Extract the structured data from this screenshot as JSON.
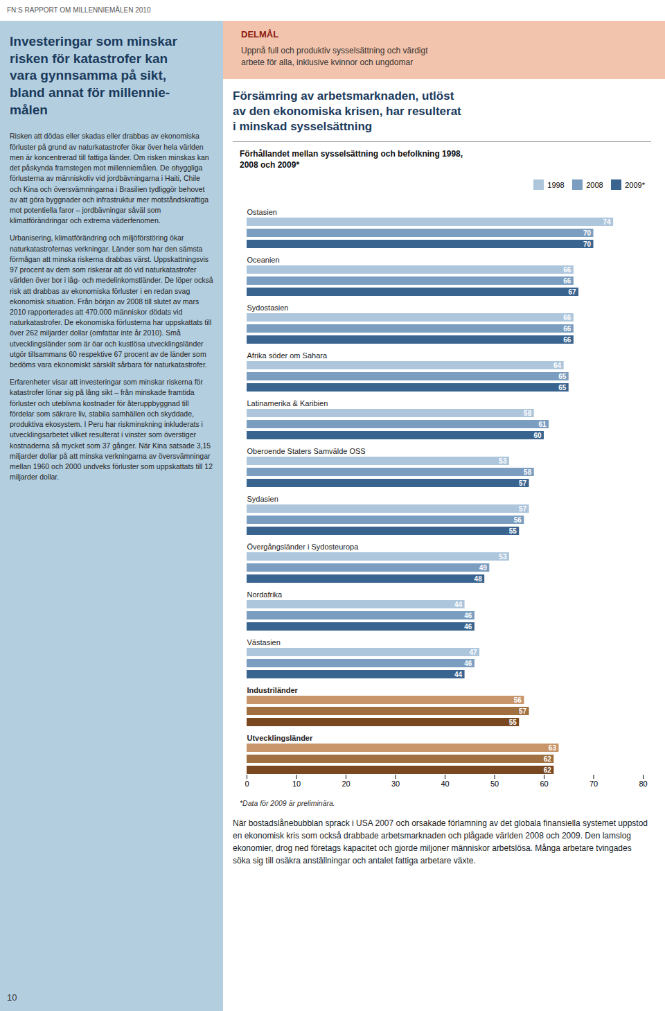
{
  "chart_data": {
    "type": "bar",
    "orientation": "horizontal",
    "title": "Förhållandet mellan sysselsättning och befolkning 1998,\n2008 och 2009*",
    "categories": [
      "Ostasien",
      "Oceanien",
      "Sydostasien",
      "Afrika söder om Sahara",
      "Latinamerika & Karibien",
      "Oberoende Staters Samvälde OSS",
      "Sydasien",
      "Övergångsländer i Sydosteuropa",
      "Nordafrika",
      "Västasien",
      "Industriländer",
      "Utvecklingsländer"
    ],
    "series": [
      {
        "name": "1998",
        "color": "#adc6dc",
        "colors": [
          "#adc6dc",
          "#adc6dc",
          "#adc6dc",
          "#adc6dc",
          "#adc6dc",
          "#adc6dc",
          "#adc6dc",
          "#adc6dc",
          "#adc6dc",
          "#adc6dc",
          "#c8956a",
          "#c8956a"
        ],
        "values": [
          74,
          66,
          66,
          64,
          58,
          53,
          57,
          53,
          44,
          47,
          56,
          63
        ]
      },
      {
        "name": "2008",
        "color": "#7b9dbf",
        "colors": [
          "#7b9dbf",
          "#7b9dbf",
          "#7b9dbf",
          "#7b9dbf",
          "#7b9dbf",
          "#7b9dbf",
          "#7b9dbf",
          "#7b9dbf",
          "#7b9dbf",
          "#7b9dbf",
          "#a07040",
          "#a07040"
        ],
        "values": [
          70,
          66,
          66,
          65,
          61,
          58,
          56,
          49,
          46,
          46,
          57,
          62
        ]
      },
      {
        "name": "2009*",
        "color": "#3a6490",
        "colors": [
          "#3a6490",
          "#3a6490",
          "#3a6490",
          "#3a6490",
          "#3a6490",
          "#3a6490",
          "#3a6490",
          "#3a6490",
          "#3a6490",
          "#3a6490",
          "#7a4820",
          "#7a4820"
        ],
        "values": [
          70,
          67,
          66,
          65,
          60,
          57,
          55,
          48,
          46,
          44,
          55,
          62
        ]
      }
    ],
    "xlim": [
      0,
      80
    ],
    "xticks": [
      0,
      10,
      20,
      30,
      40,
      50,
      60,
      70,
      80
    ],
    "grid": false,
    "legend": "top-right",
    "data_labels": true,
    "annotations": [
      "FN:S RAPPORT OM MILLENNIEMÅLEN 2010",
      "DELMÅL",
      "Uppnå full och produktiv sysselsättning och värdigt\narbete för alla, inklusive kvinnor och ungdomar",
      "Försämring av arbetsmarknaden, utlöst\nav den ekonomiska krisen, har resulterat\ni minskad sysselsättning",
      "*Data för 2009 är preliminära.",
      "När bostadslånebubblan sprack i USA 2007 och orsakade förlamning av det globala finansiella systemet uppstod en ekonomisk kris som också drabbade arbetsmarknaden och plågade världen 2008 och 2009. Den lamslog ekonomier, drog ned företags kapacitet och gjorde miljoner människor arbetslösa. Många arbetare tvingades söka sig till osäkra anställningar och antalet fattiga arbetare växte.",
      "Investeringar som minskar\nrisken för katastrofer kan\nvara gynnsamma på sikt,\nbland annat för millennie-\nmålen",
      "Risken att dödas eller skadas eller drabbas av ekonomiska förluster på grund av naturkatastrofer ökar över hela världen men är koncentrerad till fattiga länder. Om risken minskas kan det påskynda framstegen mot millenniemålen. De ohyggliga förlusterna av människoliv vid jordbävningarna i Haiti, Chile och Kina och översvämningarna i Brasilien tydliggör behovet av att göra byggnader och infrastruktur mer motståndskraftiga mot potentiella faror – jordbävningar såväl som klimatförändringar och extrema väderfenomen.",
      "Urbanisering, klimatförändring och miljöförstöring ökar naturkatastrofernas verkningar. Länder som har den sämsta förmågan att minska riskerna drabbas värst. Uppskattningsvis 97 procent av dem som riskerar att dö vid naturkatastrofer världen över bor i låg- och medelinkomstländer. De löper också risk att drabbas av ekonomiska förluster i en redan svag ekonomisk situation. Från början av 2008 till slutet av mars 2010 rapporterades att 470.000 människor dödats vid naturkatastrofer. De ekonomiska förlusterna har uppskattats till över 262 miljarder dollar (omfattar inte år 2010). Små utvecklingsländer som är öar och kustlösa utvecklingsländer utgör tillsammans 60 respektive 67 procent av de länder som bedöms vara ekonomiskt särskilt sårbara för naturkatastrofer.",
      "Erfarenheter visar att investeringar som minskar riskerna för katastrofer lönar sig på lång sikt – från minskade framtida förluster och uteblivna kostnader för återuppbyggnad till fördelar som säkrare liv, stabila samhällen och skyddade, produktiva ekosystem. I Peru har riskminskning inkluderats i utvecklingsarbetet vilket resulterat i vinster som överstiger kostnaderna så mycket som 37 gånger. När Kina satsade 3,15 miljarder dollar på att minska verkningarna av översvämningar mellan 1960 och 2000 undveks förluster som uppskattats till 12 miljarder dollar.",
      "10"
    ]
  }
}
